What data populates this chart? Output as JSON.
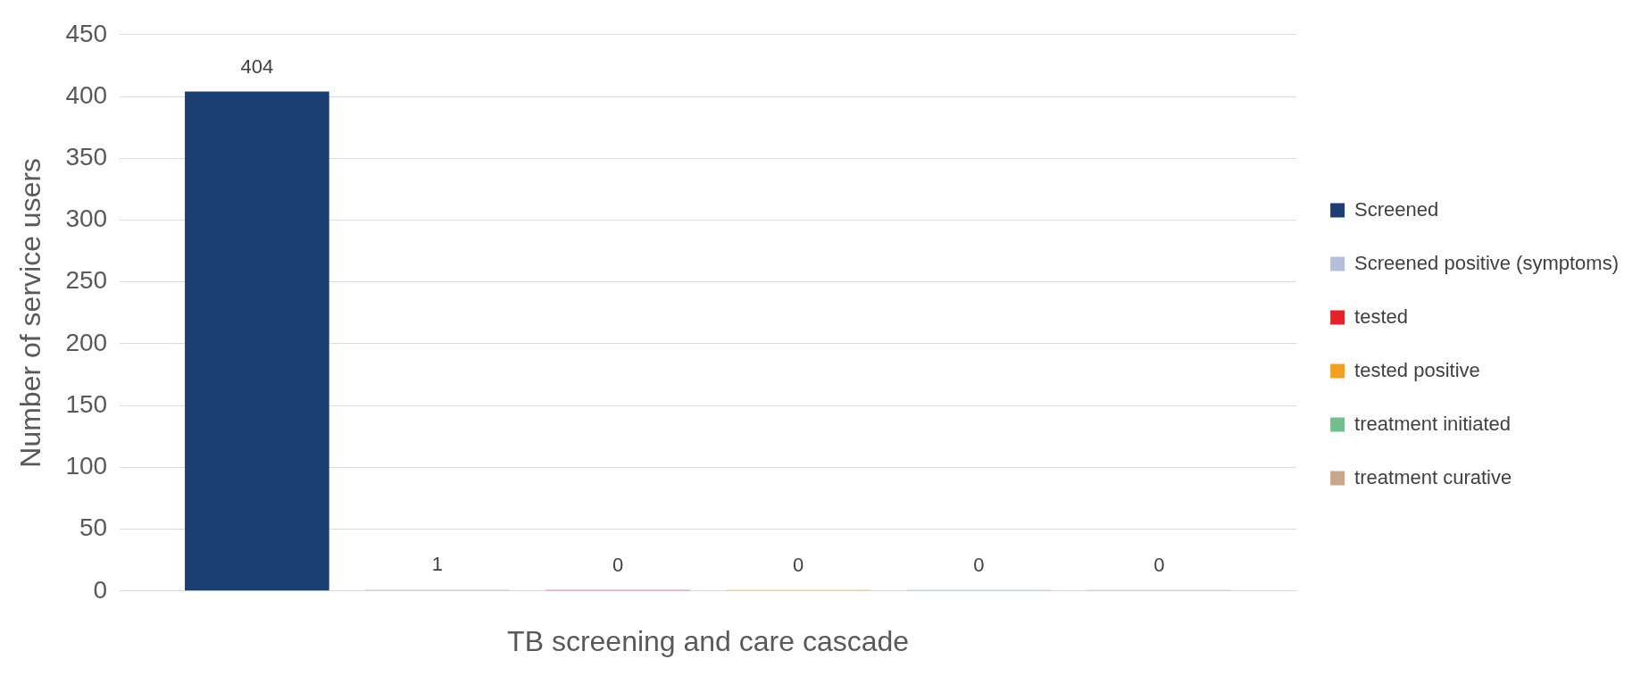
{
  "chart_data": {
    "type": "bar",
    "xlabel": "TB screening and care cascade",
    "ylabel": "Number of service users",
    "categories": [
      null
    ],
    "series": [
      {
        "name": "Screened",
        "color": "#1b3f72",
        "values": [
          404
        ]
      },
      {
        "name": "Screened positive (symptoms)",
        "color": "#b4c0da",
        "values": [
          1
        ]
      },
      {
        "name": "tested",
        "color": "#e8202a",
        "values": [
          0
        ]
      },
      {
        "name": "tested positive",
        "color": "#f5a01c",
        "values": [
          0
        ]
      },
      {
        "name": "treatment initiated",
        "color": "#72bf8c",
        "values": [
          0
        ]
      },
      {
        "name": "treatment curative",
        "color": "#c9a68a",
        "values": [
          0
        ]
      }
    ],
    "ylim": [
      0,
      450
    ],
    "yticks": [
      0,
      50,
      100,
      150,
      200,
      250,
      300,
      350,
      400,
      450
    ],
    "grid": "y",
    "legend": "right",
    "data_labels": true
  }
}
